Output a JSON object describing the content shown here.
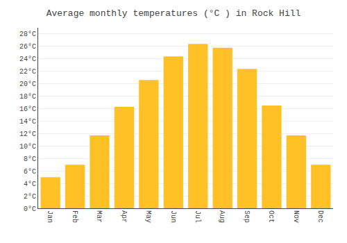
{
  "chart_data": {
    "type": "bar",
    "title": "Average monthly temperatures (°C ) in Rock Hill",
    "categories": [
      "Jan",
      "Feb",
      "Mar",
      "Apr",
      "May",
      "Jun",
      "Jul",
      "Aug",
      "Sep",
      "Oct",
      "Nov",
      "Dec"
    ],
    "values": [
      5.0,
      7.0,
      11.7,
      16.3,
      20.6,
      24.4,
      26.4,
      25.8,
      22.4,
      16.5,
      11.7,
      7.0
    ],
    "color": "#FFC125",
    "ylim": [
      0,
      29
    ],
    "yticks": [
      {
        "value": 0,
        "label": "0°C"
      },
      {
        "value": 2,
        "label": "2°C"
      },
      {
        "value": 4,
        "label": "4°C"
      },
      {
        "value": 6,
        "label": "6°C"
      },
      {
        "value": 8,
        "label": "8°C"
      },
      {
        "value": 10,
        "label": "10°C"
      },
      {
        "value": 12,
        "label": "12°C"
      },
      {
        "value": 14,
        "label": "14°C"
      },
      {
        "value": 16,
        "label": "16°C"
      },
      {
        "value": 18,
        "label": "18°C"
      },
      {
        "value": 20,
        "label": "20°C"
      },
      {
        "value": 22,
        "label": "22°C"
      },
      {
        "value": 24,
        "label": "24°C"
      },
      {
        "value": 26,
        "label": "26°C"
      },
      {
        "value": 28,
        "label": "28°C"
      }
    ],
    "grid": true
  }
}
